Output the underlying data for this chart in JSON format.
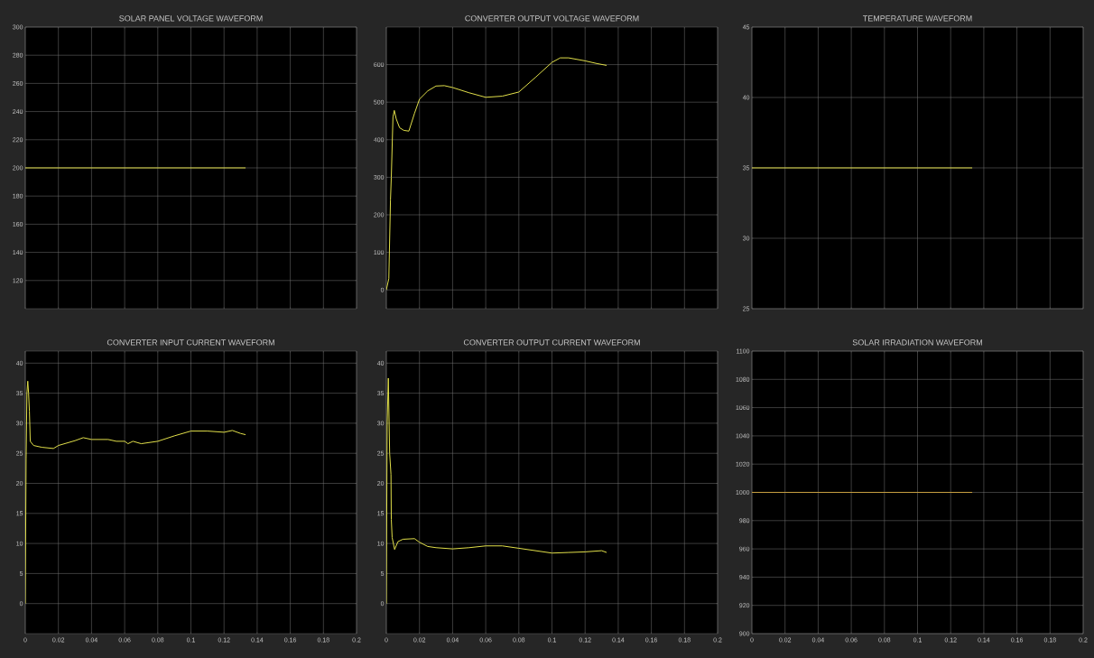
{
  "chart_data": [
    {
      "type": "line",
      "title": "SOLAR PANEL VOLTAGE WAVEFORM",
      "x": [
        0,
        0.133
      ],
      "values": [
        200,
        200
      ],
      "color": "#e2e04a",
      "xlim": [
        0,
        0.2
      ],
      "xticks": [
        0,
        0.02,
        0.04,
        0.06,
        0.08,
        0.1,
        0.12,
        0.14,
        0.16,
        0.18,
        0.2
      ],
      "ylim": [
        100,
        300
      ],
      "yticks": [
        120,
        140,
        160,
        180,
        200,
        220,
        240,
        260,
        280,
        300
      ],
      "grid": true,
      "tick_labels": "y",
      "marker": "none",
      "line_style": "solid"
    },
    {
      "type": "line",
      "title": "CONVERTER OUTPUT VOLTAGE WAVEFORM",
      "x": [
        0,
        0.0015,
        0.0025,
        0.003,
        0.004,
        0.0048,
        0.006,
        0.008,
        0.0105,
        0.0136,
        0.017,
        0.02,
        0.025,
        0.03,
        0.035,
        0.04,
        0.05,
        0.06,
        0.07,
        0.08,
        0.09,
        0.1,
        0.105,
        0.11,
        0.12,
        0.127,
        0.133
      ],
      "values": [
        0,
        30,
        240,
        300,
        460,
        478,
        455,
        432,
        425,
        423,
        470,
        508,
        530,
        543,
        544,
        539,
        525,
        513,
        516,
        527,
        566,
        606,
        618,
        618,
        610,
        603,
        598
      ],
      "color": "#e2e04a",
      "xlim": [
        0,
        0.2
      ],
      "xticks": [
        0,
        0.02,
        0.04,
        0.06,
        0.08,
        0.1,
        0.12,
        0.14,
        0.16,
        0.18,
        0.2
      ],
      "ylim": [
        -50,
        700
      ],
      "yticks": [
        0,
        100,
        200,
        300,
        400,
        500,
        600
      ],
      "grid": true,
      "tick_labels": "y",
      "marker": "none",
      "line_style": "solid"
    },
    {
      "type": "line",
      "title": "TEMPERATURE WAVEFORM",
      "x": [
        0,
        0.133
      ],
      "values": [
        35,
        35
      ],
      "color": "#e2e04a",
      "xlim": [
        0,
        0.2
      ],
      "xticks": [
        0,
        0.02,
        0.04,
        0.06,
        0.08,
        0.1,
        0.12,
        0.14,
        0.16,
        0.18,
        0.2
      ],
      "ylim": [
        25,
        45
      ],
      "yticks": [
        25,
        30,
        35,
        40,
        45
      ],
      "grid": true,
      "tick_labels": "y",
      "marker": "none",
      "line_style": "solid"
    },
    {
      "type": "line",
      "title": "CONVERTER INPUT CURRENT WAVEFORM",
      "x": [
        0,
        0.0005,
        0.001,
        0.0015,
        0.002,
        0.0025,
        0.003,
        0.005,
        0.01,
        0.017,
        0.02,
        0.03,
        0.035,
        0.04,
        0.05,
        0.055,
        0.06,
        0.062,
        0.065,
        0.07,
        0.08,
        0.09,
        0.1,
        0.11,
        0.12,
        0.125,
        0.13,
        0.133
      ],
      "values": [
        0,
        24,
        35,
        37,
        35,
        32,
        27,
        26.3,
        26,
        25.8,
        26.3,
        27.1,
        27.6,
        27.3,
        27.3,
        27,
        27,
        26.6,
        27,
        26.6,
        27,
        27.9,
        28.7,
        28.7,
        28.5,
        28.8,
        28.3,
        28.1
      ],
      "color": "#e2e04a",
      "xlim": [
        0,
        0.2
      ],
      "xticks": [
        0,
        0.02,
        0.04,
        0.06,
        0.08,
        0.1,
        0.12,
        0.14,
        0.16,
        0.18,
        0.2
      ],
      "ylim": [
        -5,
        42
      ],
      "yticks": [
        0,
        5,
        10,
        15,
        20,
        25,
        30,
        35,
        40
      ],
      "grid": true,
      "marker": "none",
      "line_style": "solid"
    },
    {
      "type": "line",
      "title": "CONVERTER OUTPUT CURRENT WAVEFORM",
      "x": [
        0,
        0.0005,
        0.0012,
        0.002,
        0.0028,
        0.003,
        0.0035,
        0.005,
        0.007,
        0.01,
        0.017,
        0.02,
        0.025,
        0.03,
        0.04,
        0.05,
        0.06,
        0.07,
        0.08,
        0.09,
        0.1,
        0.11,
        0.12,
        0.13,
        0.133
      ],
      "values": [
        0,
        30,
        37.5,
        25,
        21.5,
        14,
        11,
        9,
        10.3,
        10.7,
        10.8,
        10.2,
        9.5,
        9.3,
        9.1,
        9.3,
        9.6,
        9.6,
        9.2,
        8.8,
        8.4,
        8.5,
        8.6,
        8.8,
        8.5
      ],
      "color": "#e2e04a",
      "xlim": [
        0,
        0.2
      ],
      "xticks": [
        0,
        0.02,
        0.04,
        0.06,
        0.08,
        0.1,
        0.12,
        0.14,
        0.16,
        0.18,
        0.2
      ],
      "ylim": [
        -5,
        42
      ],
      "yticks": [
        0,
        5,
        10,
        15,
        20,
        25,
        30,
        35,
        40
      ],
      "grid": true,
      "marker": "none",
      "line_style": "solid"
    },
    {
      "type": "line",
      "title": "SOLAR IRRADIATION WAVEFORM",
      "x": [
        0,
        0.133
      ],
      "values": [
        1000,
        1000
      ],
      "color": "#c8a040",
      "xlim": [
        0,
        0.2
      ],
      "xticks": [
        0,
        0.02,
        0.04,
        0.06,
        0.08,
        0.1,
        0.12,
        0.14,
        0.16,
        0.18,
        0.2
      ],
      "ylim": [
        900,
        1100
      ],
      "yticks": [
        900,
        920,
        940,
        960,
        980,
        1000,
        1020,
        1040,
        1060,
        1080,
        1100
      ],
      "grid": true,
      "marker": "none",
      "line_style": "solid"
    }
  ]
}
